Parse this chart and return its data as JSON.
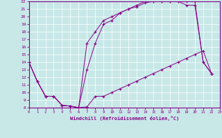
{
  "bg_color": "#c8e8e8",
  "line_color": "#880088",
  "xlim": [
    0,
    23
  ],
  "ylim": [
    8,
    22
  ],
  "xticks": [
    0,
    1,
    2,
    3,
    4,
    5,
    6,
    7,
    8,
    9,
    10,
    11,
    12,
    13,
    14,
    15,
    16,
    17,
    18,
    19,
    20,
    21,
    22,
    23
  ],
  "yticks": [
    8,
    9,
    10,
    11,
    12,
    13,
    14,
    15,
    16,
    17,
    18,
    19,
    20,
    21,
    22
  ],
  "xlabel": "Windchill (Refroidissement éolien,°C)",
  "line1": {
    "x": [
      0,
      1,
      2,
      3,
      4,
      5,
      6,
      7,
      8,
      9,
      10,
      11,
      12,
      13,
      14,
      15,
      16,
      17,
      18,
      19,
      20,
      21,
      22
    ],
    "y": [
      14,
      11.5,
      9.5,
      9.5,
      8.3,
      8.2,
      8.0,
      8.1,
      9.5,
      9.5,
      10.0,
      10.5,
      11.0,
      11.5,
      12.0,
      12.5,
      13.0,
      13.5,
      14.0,
      14.5,
      15.0,
      15.5,
      12.5
    ]
  },
  "line2": {
    "x": [
      0,
      1,
      2,
      3,
      4,
      5,
      6,
      7,
      8,
      9,
      10,
      11,
      12,
      13,
      14,
      15,
      16,
      17,
      18,
      19,
      20,
      21,
      22
    ],
    "y": [
      14,
      11.5,
      9.5,
      9.5,
      8.3,
      8.2,
      8.0,
      16.5,
      18.0,
      19.5,
      20.0,
      20.5,
      21.0,
      21.3,
      21.8,
      22.0,
      22.0,
      22.0,
      22.0,
      22.0,
      22.0,
      14.0,
      12.5
    ]
  },
  "line3": {
    "x": [
      0,
      1,
      2,
      3,
      4,
      5,
      6,
      7,
      8,
      9,
      10,
      11,
      12,
      13,
      14,
      15,
      16,
      17,
      18,
      19,
      20,
      21,
      22
    ],
    "y": [
      14,
      11.5,
      9.5,
      9.5,
      8.3,
      8.2,
      8.0,
      13.0,
      16.5,
      19.0,
      19.5,
      20.5,
      21.0,
      21.5,
      22.0,
      22.0,
      22.0,
      22.0,
      22.0,
      21.5,
      21.5,
      14.0,
      12.5
    ]
  }
}
